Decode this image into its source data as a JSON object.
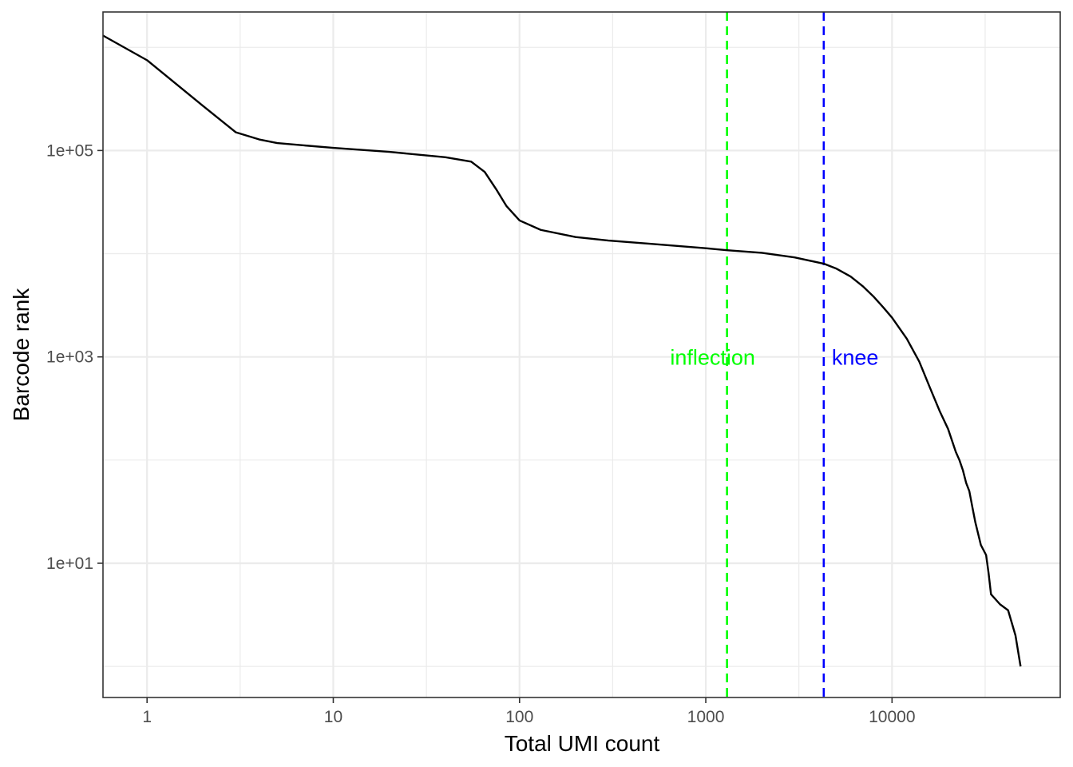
{
  "chart_data": {
    "type": "line",
    "title": "",
    "xlabel": "Total UMI count",
    "ylabel": "Barcode rank",
    "x_scale": "log10",
    "y_scale": "log10",
    "xlim": [
      0.58,
      80000
    ],
    "ylim": [
      0.5,
      2200000
    ],
    "x_ticks": [
      {
        "value": 1,
        "label": "1"
      },
      {
        "value": 10,
        "label": "10"
      },
      {
        "value": 100,
        "label": "100"
      },
      {
        "value": 1000,
        "label": "1000"
      },
      {
        "value": 10000,
        "label": "10000"
      }
    ],
    "y_ticks": [
      {
        "value": 10,
        "label": "1e+01"
      },
      {
        "value": 1000,
        "label": "1e+03"
      },
      {
        "value": 100000,
        "label": "1e+05"
      }
    ],
    "grid": true,
    "legend": "none",
    "series": [
      {
        "color": "#000000",
        "points": [
          [
            0.58,
            1300000
          ],
          [
            1.0,
            750000
          ],
          [
            2.0,
            270000
          ],
          [
            3.0,
            150000
          ],
          [
            4.0,
            128000
          ],
          [
            5.0,
            118000
          ],
          [
            10.0,
            106000
          ],
          [
            20.0,
            97000
          ],
          [
            40.0,
            86000
          ],
          [
            55.0,
            78000
          ],
          [
            65.0,
            62000
          ],
          [
            75.0,
            42000
          ],
          [
            85.0,
            29000
          ],
          [
            100.0,
            21000
          ],
          [
            130.0,
            17000
          ],
          [
            200.0,
            14500
          ],
          [
            300.0,
            13400
          ],
          [
            500.0,
            12500
          ],
          [
            1000.0,
            11300
          ],
          [
            1300.0,
            10800
          ],
          [
            2000.0,
            10200
          ],
          [
            3000.0,
            9200
          ],
          [
            4300.0,
            8000
          ],
          [
            5000.0,
            7200
          ],
          [
            6000.0,
            6000
          ],
          [
            7000.0,
            4800
          ],
          [
            8000.0,
            3800
          ],
          [
            9000.0,
            3000
          ],
          [
            10000.0,
            2400
          ],
          [
            12000.0,
            1500
          ],
          [
            14000.0,
            900
          ],
          [
            16000.0,
            500
          ],
          [
            18000.0,
            300
          ],
          [
            20000.0,
            200
          ],
          [
            22000.0,
            120
          ],
          [
            23000.0,
            100
          ],
          [
            24000.0,
            80
          ],
          [
            25000.0,
            60
          ],
          [
            26000.0,
            50
          ],
          [
            27000.0,
            35
          ],
          [
            28000.0,
            25
          ],
          [
            30000.0,
            15
          ],
          [
            32000.0,
            12
          ],
          [
            33000.0,
            8
          ],
          [
            34000.0,
            5
          ],
          [
            38000.0,
            4
          ],
          [
            42000.0,
            3.5
          ],
          [
            46000.0,
            2
          ],
          [
            49000.0,
            1
          ]
        ]
      }
    ],
    "vlines": [
      {
        "x": 1300,
        "color": "#00ff00",
        "linetype": "dashed",
        "label": "inflection"
      },
      {
        "x": 4300,
        "color": "#0000ff",
        "linetype": "dashed",
        "label": "knee"
      }
    ],
    "annotation_y": 1000
  }
}
